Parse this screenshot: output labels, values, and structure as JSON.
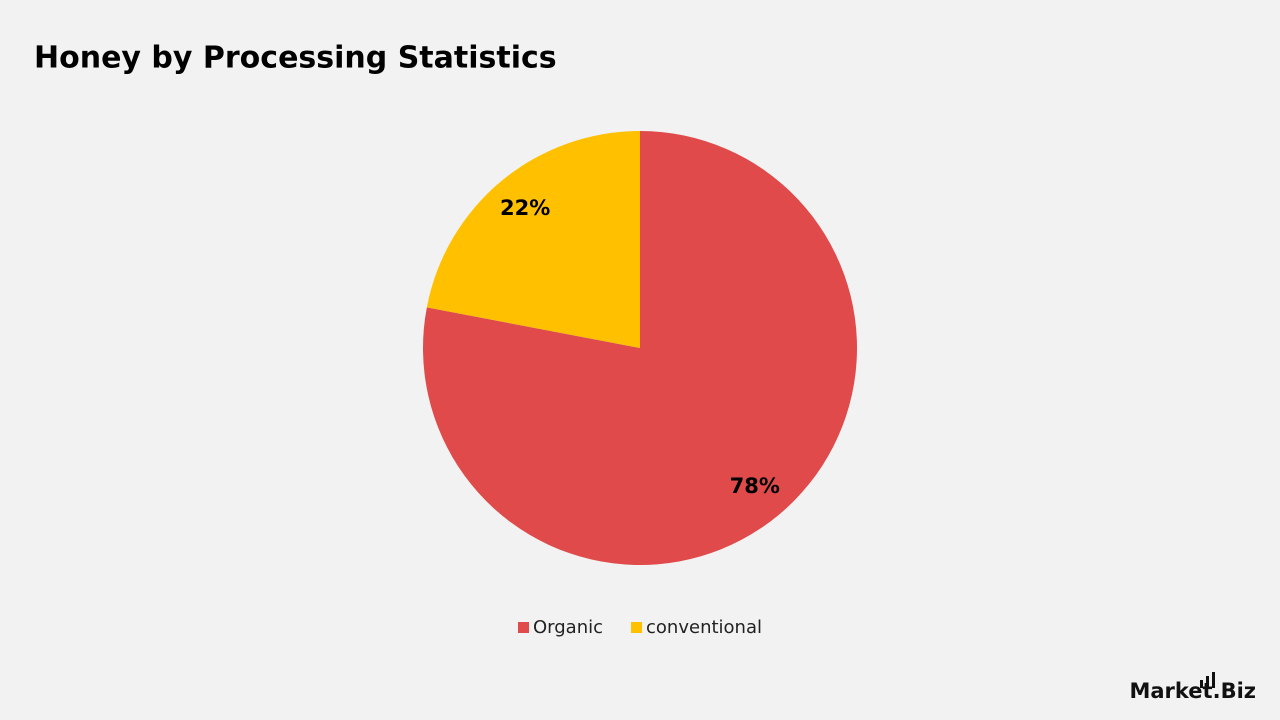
{
  "chart_data": {
    "type": "pie",
    "title": "Honey by Processing Statistics",
    "categories": [
      "Organic",
      "conventional"
    ],
    "values": [
      78,
      22
    ],
    "value_labels": [
      "78%",
      "22%"
    ],
    "colors": [
      "#e04a4a",
      "#ffc000"
    ],
    "legend": "bottom"
  },
  "logo": "Market.Biz"
}
